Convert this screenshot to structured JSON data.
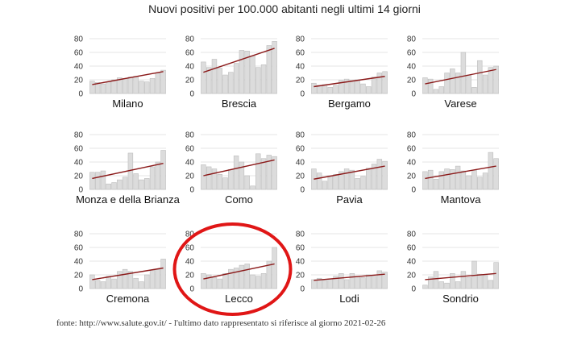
{
  "title": "Nuovi positivi per 100.000 abitanti negli ultimi 14 giorni",
  "source": "fonte: http://www.salute.gov.it/ - l'ultimo dato rappresentato si riferisce al giorno 2021-02-26",
  "colors": {
    "bar_fill": "#dcdcdc",
    "trend": "#8b1a1a",
    "highlight": "#e01616"
  },
  "highlighted_panel": "Lecco",
  "chart_data": {
    "type": "bar",
    "layout": "facet-grid-3x4",
    "yticks": [
      0,
      20,
      40,
      60,
      80
    ],
    "ylim": [
      0,
      85
    ],
    "grid": true,
    "panels": [
      {
        "name": "Milano",
        "values": [
          18,
          16,
          14,
          17,
          20,
          23,
          22,
          24,
          25,
          18,
          17,
          22,
          30,
          34
        ],
        "trend": [
          13,
          32
        ]
      },
      {
        "name": "Brescia",
        "values": [
          46,
          38,
          50,
          37,
          27,
          31,
          44,
          63,
          62,
          55,
          38,
          42,
          70,
          76
        ],
        "trend": [
          31,
          66
        ]
      },
      {
        "name": "Bergamo",
        "values": [
          15,
          12,
          13,
          9,
          12,
          19,
          21,
          19,
          20,
          14,
          10,
          24,
          30,
          32
        ],
        "trend": [
          10,
          25
        ]
      },
      {
        "name": "Varese",
        "values": [
          23,
          21,
          6,
          10,
          30,
          36,
          30,
          60,
          27,
          9,
          48,
          27,
          38,
          40
        ],
        "trend": [
          14,
          35
        ]
      },
      {
        "name": "Monza e della Brianza",
        "values": [
          25,
          25,
          27,
          8,
          10,
          14,
          18,
          53,
          23,
          14,
          16,
          33,
          40,
          57
        ],
        "trend": [
          16,
          38
        ]
      },
      {
        "name": "Como",
        "values": [
          36,
          33,
          30,
          22,
          17,
          29,
          49,
          40,
          20,
          5,
          52,
          45,
          50,
          48
        ],
        "trend": [
          20,
          43
        ]
      },
      {
        "name": "Pavia",
        "values": [
          30,
          24,
          12,
          20,
          22,
          26,
          30,
          28,
          16,
          19,
          31,
          37,
          44,
          41
        ],
        "trend": [
          15,
          34
        ]
      },
      {
        "name": "Mantova",
        "values": [
          26,
          28,
          15,
          26,
          30,
          29,
          34,
          27,
          20,
          28,
          18,
          24,
          54,
          45
        ],
        "trend": [
          16,
          34
        ]
      },
      {
        "name": "Cremona",
        "values": [
          20,
          12,
          10,
          18,
          14,
          25,
          28,
          25,
          15,
          10,
          20,
          27,
          28,
          43
        ],
        "trend": [
          13,
          30
        ]
      },
      {
        "name": "Lecco",
        "values": [
          22,
          20,
          16,
          14,
          22,
          28,
          30,
          34,
          36,
          20,
          18,
          22,
          40,
          60
        ],
        "trend": [
          14,
          36
        ]
      },
      {
        "name": "Lodi",
        "values": [
          13,
          15,
          12,
          14,
          18,
          22,
          13,
          22,
          18,
          16,
          20,
          18,
          26,
          24
        ],
        "trend": [
          12,
          21
        ]
      },
      {
        "name": "Sondrio",
        "values": [
          5,
          17,
          25,
          10,
          8,
          22,
          10,
          25,
          16,
          40,
          21,
          19,
          12,
          38
        ],
        "trend": [
          13,
          22
        ]
      }
    ]
  }
}
